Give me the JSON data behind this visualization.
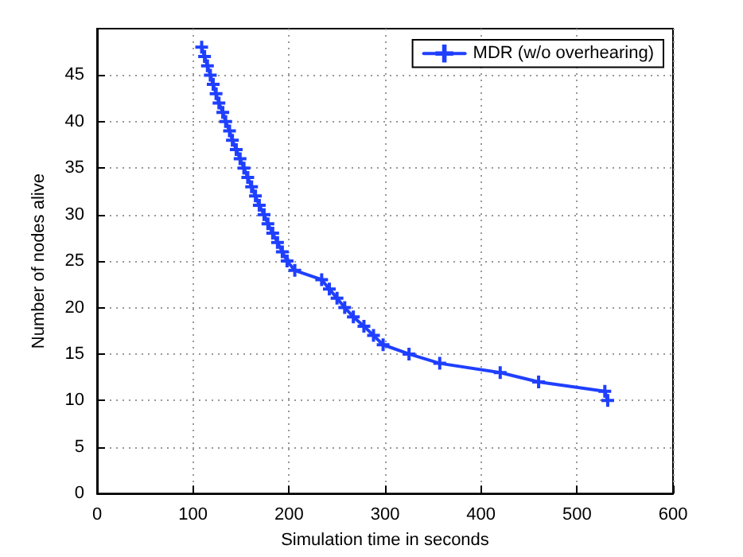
{
  "chart_data": {
    "type": "line",
    "xlabel": "Simulation time in seconds",
    "ylabel": "Number of nodes alive",
    "xlim": [
      0,
      600
    ],
    "xticks": [
      0,
      100,
      200,
      300,
      400,
      500,
      600
    ],
    "ylim": [
      0,
      50
    ],
    "yticks": [
      0,
      5,
      10,
      15,
      20,
      25,
      30,
      35,
      40,
      45
    ],
    "grid": true,
    "legend": "top right",
    "marker": "cross",
    "line_style": "solid",
    "series": [
      {
        "name": "MDR (w/o overhearing)",
        "color": "#1f3fff",
        "x": [
          109,
          112,
          115,
          118,
          121,
          124,
          127,
          131,
          134,
          138,
          141,
          145,
          149,
          153,
          157,
          161,
          165,
          169,
          174,
          178,
          183,
          188,
          193,
          198,
          206,
          234,
          242,
          250,
          258,
          267,
          278,
          288,
          298,
          325,
          357,
          420,
          460,
          529,
          532
        ],
        "values": [
          48,
          47,
          46,
          45,
          44,
          43,
          42,
          41,
          40,
          39,
          38,
          37,
          36,
          35,
          34,
          33,
          32,
          31,
          30,
          29,
          28,
          27,
          26,
          25,
          24,
          23,
          22,
          21,
          20,
          19,
          18,
          17,
          16,
          15,
          14,
          13,
          12,
          11,
          10
        ]
      }
    ]
  }
}
